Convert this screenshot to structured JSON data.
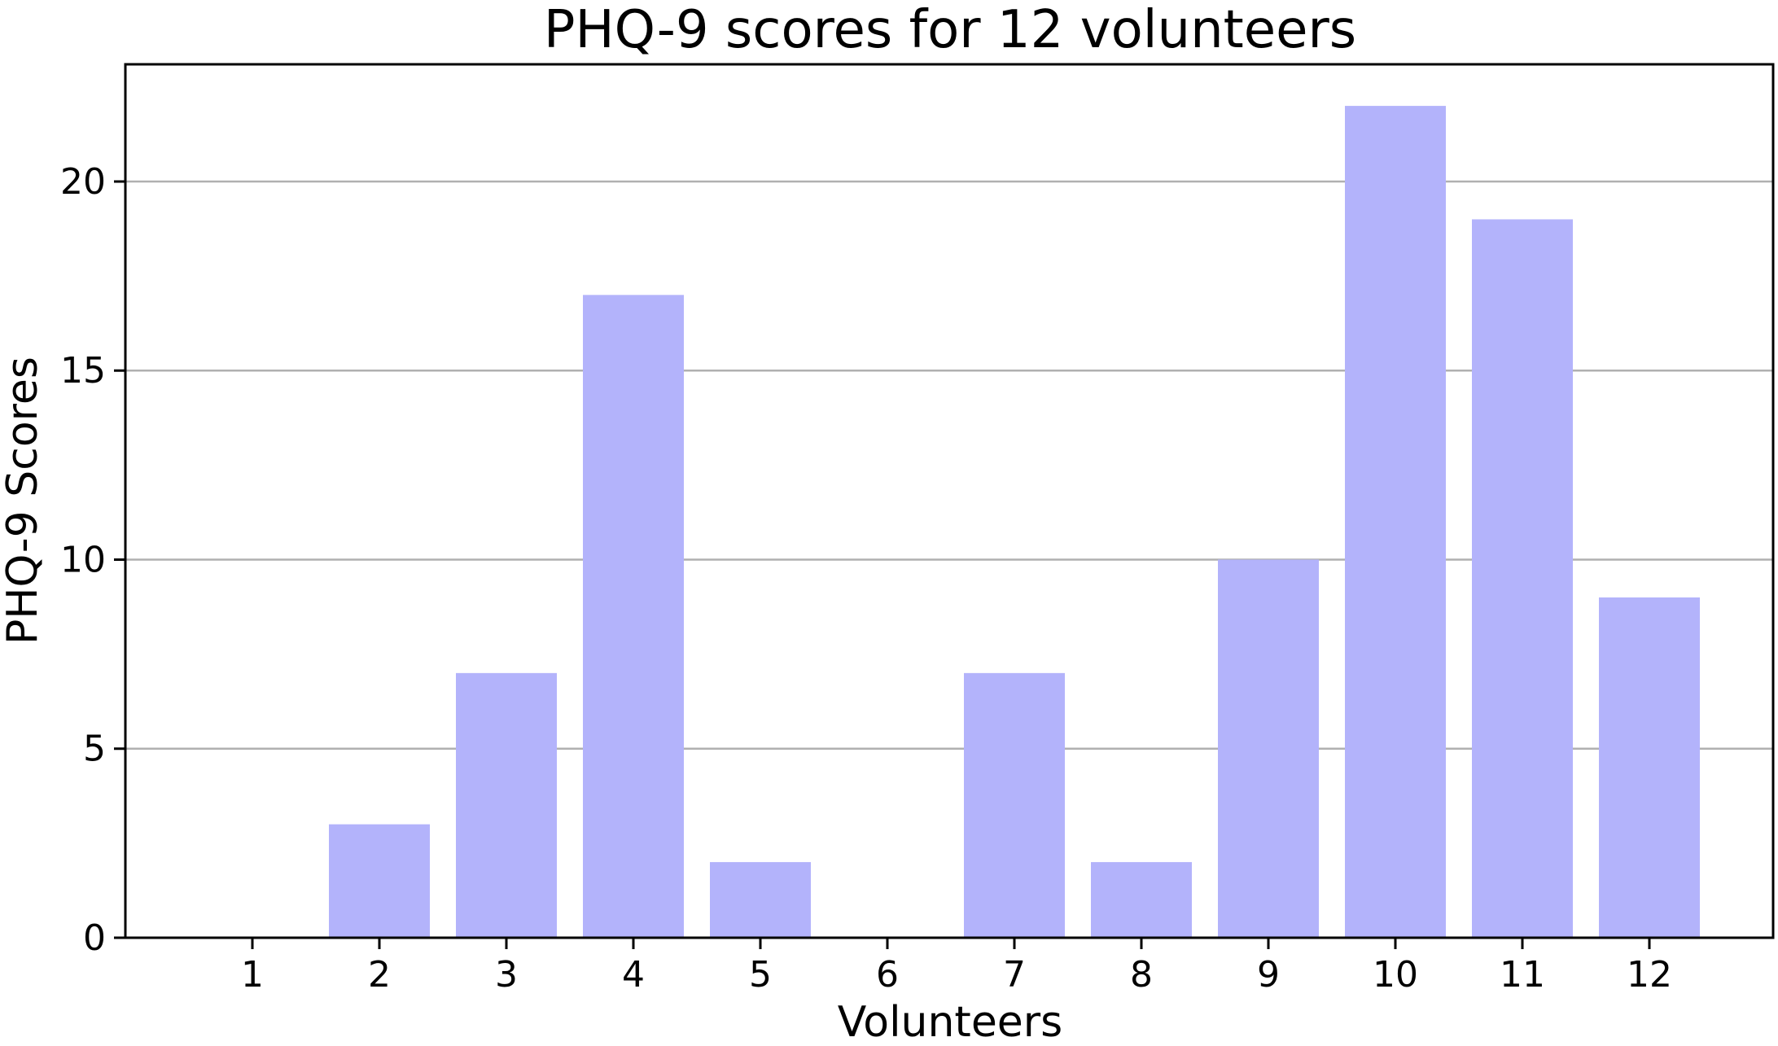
{
  "chart_data": {
    "type": "bar",
    "title": "PHQ-9 scores for 12 volunteers",
    "xlabel": "Volunteers",
    "ylabel": "PHQ-9 Scores",
    "categories": [
      "1",
      "2",
      "3",
      "4",
      "5",
      "6",
      "7",
      "8",
      "9",
      "10",
      "11",
      "12"
    ],
    "values": [
      0,
      3,
      7,
      17,
      2,
      0,
      7,
      2,
      10,
      22,
      19,
      9
    ],
    "ylim": [
      0,
      23.1
    ],
    "yticks": [
      0,
      5,
      10,
      15,
      20
    ],
    "grid": "horizontal",
    "bar_color": "#b3b3fb",
    "grid_color": "#b0b0b0",
    "frame_color": "#000000"
  }
}
